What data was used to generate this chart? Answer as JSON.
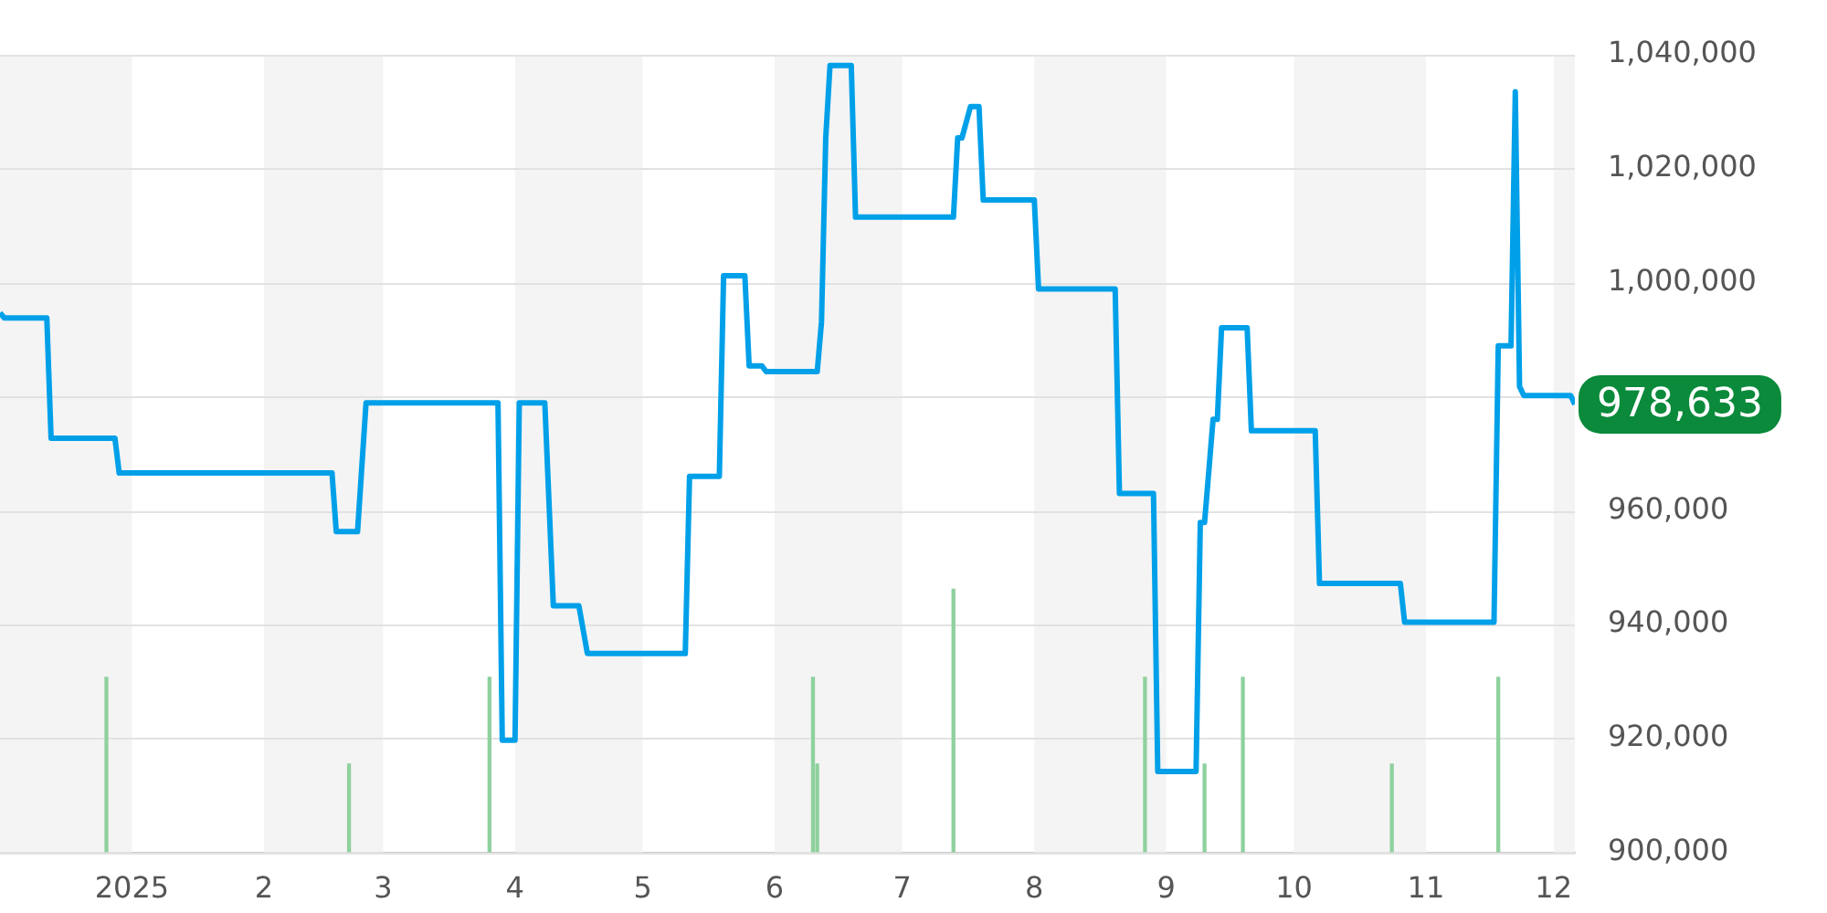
{
  "chart_data": {
    "type": "line",
    "xlim": [
      "2024-12-01",
      "2025-12-06"
    ],
    "xticks": [
      {
        "value": "2025-01-01",
        "label": "2025"
      },
      {
        "value": "2025-02-01",
        "label": "2"
      },
      {
        "value": "2025-03-01",
        "label": "3"
      },
      {
        "value": "2025-04-01",
        "label": "4"
      },
      {
        "value": "2025-05-01",
        "label": "5"
      },
      {
        "value": "2025-06-01",
        "label": "6"
      },
      {
        "value": "2025-07-01",
        "label": "7"
      },
      {
        "value": "2025-08-01",
        "label": "8"
      },
      {
        "value": "2025-09-01",
        "label": "9"
      },
      {
        "value": "2025-10-01",
        "label": "10"
      },
      {
        "value": "2025-11-01",
        "label": "11"
      },
      {
        "value": "2025-12-01",
        "label": "12"
      }
    ],
    "ylim": [
      900000,
      1040000
    ],
    "yticks": [
      {
        "value": 900000,
        "label": "900,000"
      },
      {
        "value": 920000,
        "label": "920,000"
      },
      {
        "value": 940000,
        "label": "940,000"
      },
      {
        "value": 960000,
        "label": "960,000"
      },
      {
        "value": 980000,
        "label": null
      },
      {
        "value": 1000000,
        "label": "1,000,000"
      },
      {
        "value": 1020000,
        "label": "1,020,000"
      },
      {
        "value": 1040000,
        "label": "1,040,000"
      }
    ],
    "grid": "y",
    "legend": false,
    "marker": "none",
    "line_style": "solid",
    "bands": [
      {
        "axis": "x",
        "from": "2024-12-01",
        "to": "2025-01-01",
        "color": "#f4f4f4"
      },
      {
        "axis": "x",
        "from": "2025-02-01",
        "to": "2025-03-01",
        "color": "#f4f4f4"
      },
      {
        "axis": "x",
        "from": "2025-04-01",
        "to": "2025-05-01",
        "color": "#f4f4f4"
      },
      {
        "axis": "x",
        "from": "2025-06-01",
        "to": "2025-07-01",
        "color": "#f4f4f4"
      },
      {
        "axis": "x",
        "from": "2025-08-01",
        "to": "2025-09-01",
        "color": "#f4f4f4"
      },
      {
        "axis": "x",
        "from": "2025-10-01",
        "to": "2025-11-01",
        "color": "#f4f4f4"
      },
      {
        "axis": "x",
        "from": "2025-12-01",
        "to": "2025-12-06",
        "color": "#f4f4f4"
      }
    ],
    "annotations": [
      {
        "text": "978,633",
        "x": "2025-12-06",
        "y": 978633
      }
    ],
    "series": [
      {
        "type": "bar",
        "color": "#8fd19e",
        "x": [
          "2024-12-26",
          "2025-02-21",
          "2025-03-26",
          "2025-06-10",
          "2025-06-11",
          "2025-07-13",
          "2025-08-27",
          "2025-09-10",
          "2025-09-19",
          "2025-10-24",
          "2025-11-18"
        ],
        "values": [
          930700,
          915500,
          930700,
          930700,
          915500,
          946200,
          930700,
          915500,
          930700,
          915500,
          930700
        ]
      },
      {
        "color": "#00a0e9",
        "x": [
          "2024-12-01",
          "2024-12-02",
          "2024-12-12",
          "2024-12-13",
          "2024-12-28",
          "2024-12-29",
          "2025-02-17",
          "2025-02-18",
          "2025-02-23",
          "2025-02-25",
          "2025-03-28",
          "2025-03-29",
          "2025-04-01",
          "2025-04-02",
          "2025-04-08",
          "2025-04-10",
          "2025-04-16",
          "2025-04-18",
          "2025-05-11",
          "2025-05-12",
          "2025-05-19",
          "2025-05-20",
          "2025-05-25",
          "2025-05-26",
          "2025-05-29",
          "2025-05-30",
          "2025-06-11",
          "2025-06-12",
          "2025-06-13",
          "2025-06-14",
          "2025-06-19",
          "2025-06-20",
          "2025-07-13",
          "2025-07-14",
          "2025-07-15",
          "2025-07-17",
          "2025-07-19",
          "2025-07-20",
          "2025-08-01",
          "2025-08-02",
          "2025-08-20",
          "2025-08-21",
          "2025-08-29",
          "2025-08-30",
          "2025-09-08",
          "2025-09-09",
          "2025-09-10",
          "2025-09-12",
          "2025-09-13",
          "2025-09-14",
          "2025-09-20",
          "2025-09-21",
          "2025-10-06",
          "2025-10-07",
          "2025-10-26",
          "2025-10-27",
          "2025-11-17",
          "2025-11-18",
          "2025-11-21",
          "2025-11-22",
          "2025-11-23",
          "2025-11-24",
          "2025-12-05",
          "2025-12-06"
        ],
        "values": [
          994700,
          993800,
          993800,
          972700,
          972700,
          966600,
          966600,
          956300,
          956300,
          978900,
          978900,
          919700,
          919700,
          978900,
          978900,
          943300,
          943300,
          934900,
          934900,
          966000,
          966000,
          1001200,
          1001200,
          985400,
          985400,
          984400,
          984400,
          993100,
          1025400,
          1038100,
          1038100,
          1011500,
          1011500,
          1025400,
          1025400,
          1030900,
          1030900,
          1014500,
          1014500,
          998900,
          998900,
          963000,
          963000,
          914200,
          914200,
          957900,
          957900,
          976000,
          976000,
          992100,
          992100,
          974000,
          974000,
          947200,
          947200,
          940400,
          940400,
          988900,
          988900,
          1033500,
          981800,
          980200,
          980200,
          978633
        ]
      }
    ]
  }
}
